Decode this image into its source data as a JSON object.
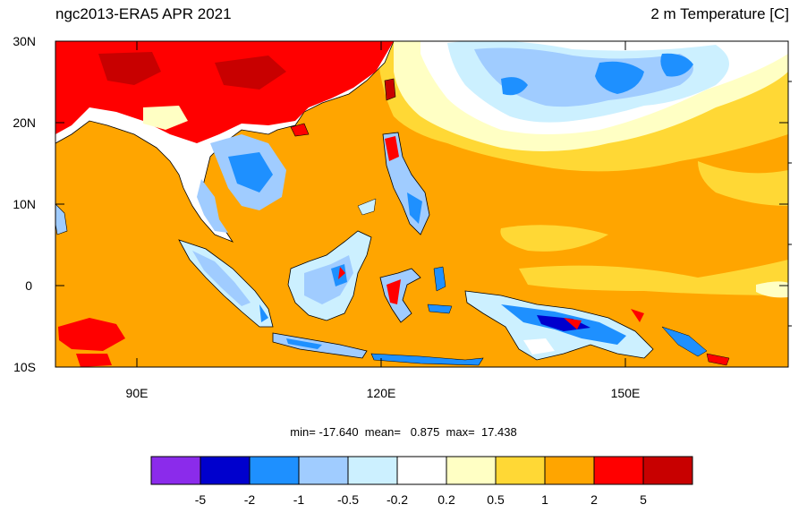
{
  "header": {
    "title_left": "ngc2013-ERA5 APR 2021",
    "title_right": "2 m Temperature [C]"
  },
  "map": {
    "projection": "cylindrical-equidistant",
    "lat_range": [
      -10,
      30
    ],
    "lon_range": [
      80,
      170
    ],
    "lat_tick_labels": [
      "30N",
      "20N",
      "10N",
      "0",
      "10S"
    ],
    "lat_tick_values": [
      30,
      20,
      10,
      0,
      -10
    ],
    "lon_tick_labels": [
      "90E",
      "120E",
      "150E"
    ],
    "lon_tick_values": [
      90,
      120,
      150
    ],
    "ocean_color": "#FFA500",
    "land_outline": "#000000"
  },
  "stats": {
    "min_label": "min=",
    "min_value": "-17.640",
    "mean_label": "mean=",
    "mean_value": "0.875",
    "max_label": "max=",
    "max_value": "17.438"
  },
  "colorbar": {
    "colors": [
      "#8B2BEB",
      "#0000CD",
      "#1E90FF",
      "#A0CCFF",
      "#CCF0FF",
      "#FFFFFF",
      "#FFFFC4",
      "#FFD835",
      "#FFA500",
      "#FF0000",
      "#C80000"
    ],
    "labels": [
      "-5",
      "-2",
      "-1",
      "-0.5",
      "-0.2",
      "0.2",
      "0.5",
      "1",
      "2",
      "5"
    ]
  }
}
